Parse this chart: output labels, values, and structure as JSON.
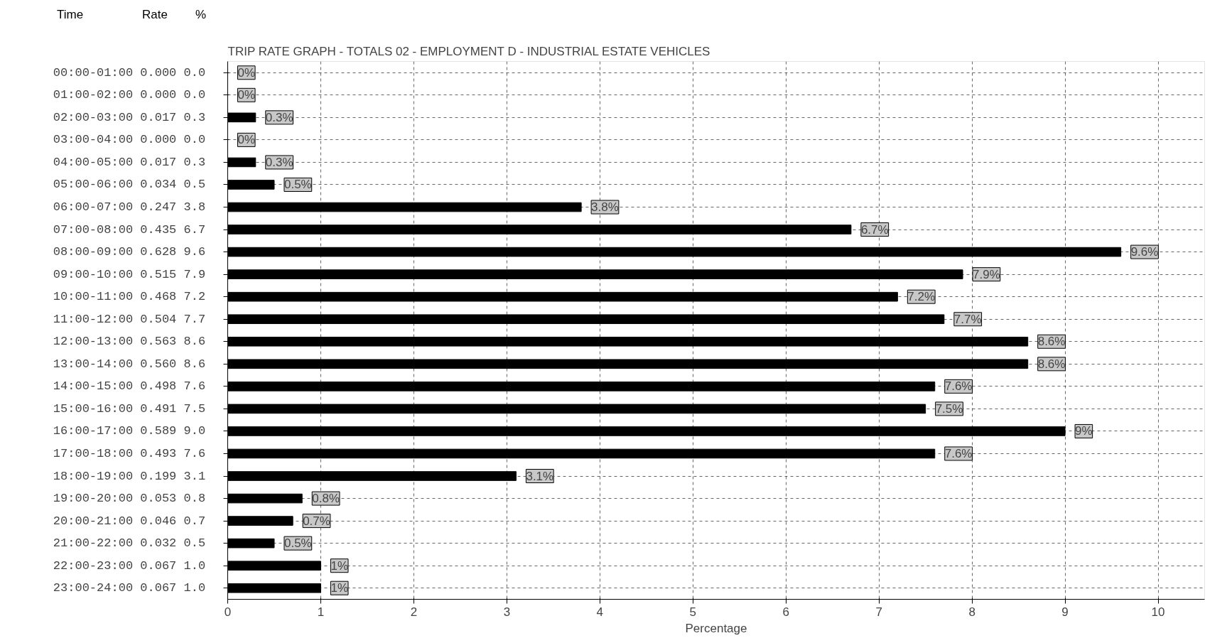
{
  "chart_data": {
    "type": "bar",
    "orientation": "horizontal",
    "title": "TRIP RATE GRAPH - TOTALS  02 - EMPLOYMENT  D - INDUSTRIAL ESTATE   VEHICLES",
    "xlabel": "Percentage",
    "annotations": [
      "Time",
      "Rate",
      "%"
    ],
    "categories": [
      "00:00-01:00  0.000  0.0",
      "01:00-02:00  0.000  0.0",
      "02:00-03:00  0.017  0.3",
      "03:00-04:00  0.000  0.0",
      "04:00-05:00  0.017  0.3",
      "05:00-06:00  0.034  0.5",
      "06:00-07:00  0.247  3.8",
      "07:00-08:00  0.435  6.7",
      "08:00-09:00  0.628  9.6",
      "09:00-10:00  0.515  7.9",
      "10:00-11:00  0.468  7.2",
      "11:00-12:00  0.504  7.7",
      "12:00-13:00  0.563  8.6",
      "13:00-14:00  0.560  8.6",
      "14:00-15:00  0.498  7.6",
      "15:00-16:00  0.491  7.5",
      "16:00-17:00  0.589  9.0",
      "17:00-18:00  0.493  7.6",
      "18:00-19:00  0.199  3.1",
      "19:00-20:00  0.053  0.8",
      "20:00-21:00  0.046  0.7",
      "21:00-22:00  0.032  0.5",
      "22:00-23:00  0.067  1.0",
      "23:00-24:00  0.067  1.0"
    ],
    "values": [
      0,
      0,
      0.3,
      0,
      0.3,
      0.5,
      3.8,
      6.7,
      9.6,
      7.9,
      7.2,
      7.7,
      8.6,
      8.6,
      7.6,
      7.5,
      9.0,
      7.6,
      3.1,
      0.8,
      0.7,
      0.5,
      1.0,
      1.0
    ],
    "value_labels": [
      "0%",
      "0%",
      "0.3%",
      "0%",
      "0.3%",
      "0.5%",
      "3.8%",
      "6.7%",
      "9.6%",
      "7.9%",
      "7.2%",
      "7.7%",
      "8.6%",
      "8.6%",
      "7.6%",
      "7.5%",
      "9%",
      "7.6%",
      "3.1%",
      "0.8%",
      "0.7%",
      "0.5%",
      "1%",
      "1%"
    ],
    "color": "#000000",
    "xlim": [
      0,
      10.5
    ],
    "xticks": [
      0,
      1,
      2,
      3,
      4,
      5,
      6,
      7,
      8,
      9,
      10
    ],
    "grid": true
  }
}
